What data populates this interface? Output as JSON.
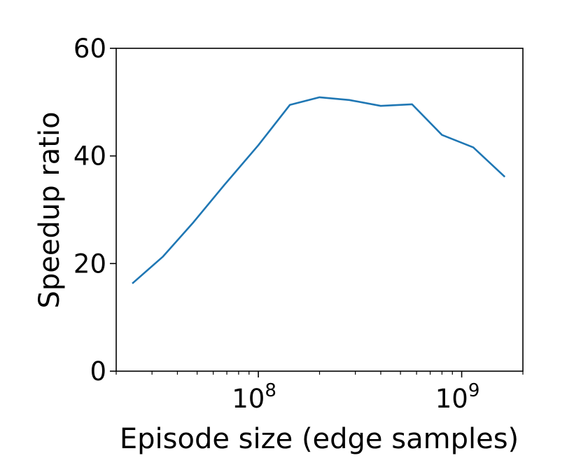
{
  "chart_data": {
    "type": "line",
    "title": "",
    "xlabel": "Episode size (edge samples)",
    "ylabel": "Speedup ratio",
    "xscale": "log",
    "xlim": [
      20000000,
      2000000000
    ],
    "ylim": [
      0,
      60
    ],
    "grid": false,
    "legend": "none",
    "x_ticks": [
      {
        "value": 100000000,
        "base": "10",
        "exp": "8"
      },
      {
        "value": 1000000000,
        "base": "10",
        "exp": "9"
      }
    ],
    "y_ticks": [
      {
        "value": 0,
        "label": "0"
      },
      {
        "value": 20,
        "label": "20"
      },
      {
        "value": 40,
        "label": "40"
      },
      {
        "value": 60,
        "label": "60"
      }
    ],
    "series": [
      {
        "color": "#1f77b4",
        "x": [
          24000000,
          34000000,
          48000000,
          68000000,
          100000000,
          143000000,
          200000000,
          280000000,
          400000000,
          570000000,
          800000000,
          1140000000,
          1630000000
        ],
        "y": [
          16.3,
          21.3,
          27.7,
          34.6,
          42.0,
          49.5,
          50.9,
          50.4,
          49.3,
          49.6,
          43.9,
          41.6,
          36.1
        ]
      }
    ]
  }
}
